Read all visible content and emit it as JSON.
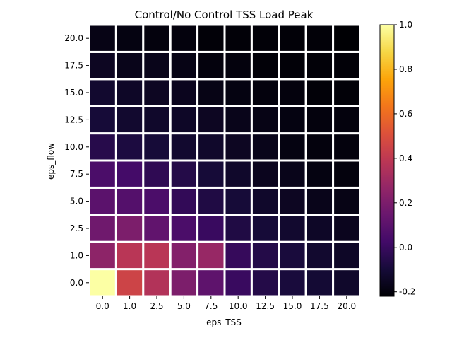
{
  "chart_data": {
    "type": "heatmap",
    "title": "Control/No Control TSS Load Peak",
    "xlabel": "eps_TSS",
    "ylabel": "eps_flow",
    "x_categories": [
      "0.0",
      "1.0",
      "2.5",
      "5.0",
      "7.5",
      "10.0",
      "12.5",
      "15.0",
      "17.5",
      "20.0"
    ],
    "y_categories": [
      "0.0",
      "1.0",
      "2.5",
      "5.0",
      "7.5",
      "10.0",
      "12.5",
      "15.0",
      "17.5",
      "20.0"
    ],
    "values": [
      [
        1.0,
        0.45,
        0.36,
        0.2,
        0.11,
        0.0,
        -0.06,
        -0.09,
        -0.11,
        -0.13
      ],
      [
        0.25,
        0.38,
        0.38,
        0.22,
        0.28,
        -0.01,
        -0.06,
        -0.09,
        -0.12,
        -0.14
      ],
      [
        0.16,
        0.2,
        0.12,
        0.05,
        0.0,
        -0.07,
        -0.1,
        -0.12,
        -0.14,
        -0.16
      ],
      [
        0.1,
        0.08,
        0.05,
        -0.02,
        -0.07,
        -0.1,
        -0.13,
        -0.15,
        -0.17,
        -0.18
      ],
      [
        0.05,
        0.03,
        -0.03,
        -0.06,
        -0.1,
        -0.13,
        -0.16,
        -0.17,
        -0.19,
        -0.2
      ],
      [
        -0.05,
        -0.08,
        -0.1,
        -0.12,
        -0.13,
        -0.15,
        -0.17,
        -0.19,
        -0.2,
        -0.2
      ],
      [
        -0.1,
        -0.12,
        -0.13,
        -0.14,
        -0.15,
        -0.17,
        -0.18,
        -0.19,
        -0.2,
        -0.2
      ],
      [
        -0.12,
        -0.14,
        -0.15,
        -0.16,
        -0.18,
        -0.19,
        -0.2,
        -0.2,
        -0.21,
        -0.21
      ],
      [
        -0.15,
        -0.17,
        -0.17,
        -0.18,
        -0.2,
        -0.2,
        -0.21,
        -0.21,
        -0.21,
        -0.21
      ],
      [
        -0.18,
        -0.19,
        -0.2,
        -0.2,
        -0.21,
        -0.21,
        -0.21,
        -0.21,
        -0.21,
        -0.22
      ]
    ],
    "vmin": -0.22,
    "vmax": 1.0,
    "colormap": "inferno",
    "colorbar_ticks": [
      "1.0",
      "0.8",
      "0.6",
      "0.4",
      "0.2",
      "0.0",
      "-0.2"
    ],
    "grid": false,
    "cell_separator_color": "#ffffff"
  }
}
